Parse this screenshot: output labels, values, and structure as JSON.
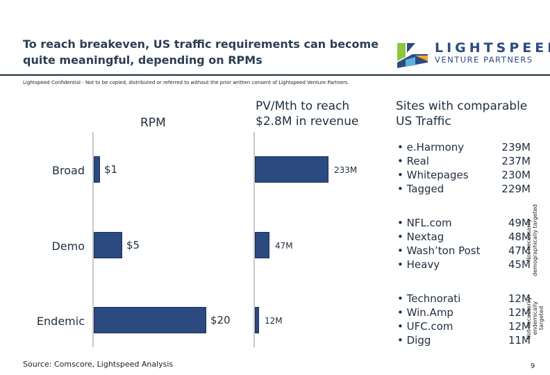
{
  "title": "To reach breakeven, US traffic requirements can become quite meaningful, depending on RPMs",
  "confidential": "Lightspeed Confidential - Not to be copied, distributed or referred to without the prior written consent of Lightspeed Venture Partners",
  "logo": {
    "line1": "LIGHTSPEED",
    "line2": "VENTURE PARTNERS"
  },
  "columns": {
    "rpm": "RPM",
    "pv": "PV/Mth to reach $2.8M in revenue",
    "sites": "Sites with comparable US Traffic"
  },
  "rows": [
    {
      "label": "Broad",
      "rpm_label": "$1",
      "pv_label": "233M"
    },
    {
      "label": "Demo",
      "rpm_label": "$5",
      "pv_label": "47M"
    },
    {
      "label": "Endemic",
      "rpm_label": "$20",
      "pv_label": "12M"
    }
  ],
  "chart_data": [
    {
      "type": "bar",
      "categories": [
        "Broad",
        "Demo",
        "Endemic"
      ],
      "values": [
        1,
        5,
        20
      ],
      "title": "RPM",
      "unit": "$"
    },
    {
      "type": "bar",
      "categories": [
        "Broad",
        "Demo",
        "Endemic"
      ],
      "values": [
        233,
        47,
        12
      ],
      "title": "PV/Mth to reach $2.8M in revenue",
      "unit": "M"
    }
  ],
  "site_groups": [
    {
      "sites": [
        "• e.Harmony",
        "• Real",
        "• Whitepages",
        "• Tagged"
      ],
      "values": [
        "239M",
        "237M",
        "230M",
        "229M"
      ],
      "note": ""
    },
    {
      "sites": [
        "• NFL.com",
        "• Nextag",
        "• Wash’ton Post",
        "• Heavy"
      ],
      "values": [
        "49M",
        "48M",
        "47M",
        "45M"
      ],
      "note": "Not necessarily demographically targeted"
    },
    {
      "sites": [
        "• Technorati",
        "• Win.Amp",
        "• UFC.com",
        "• Digg"
      ],
      "values": [
        "12M",
        "12M",
        "12M",
        "11M"
      ],
      "note": "Not necessarily endemically targeted"
    }
  ],
  "source": "Source: Comscore, Lightspeed Analysis",
  "page_number": "9",
  "colors": {
    "bar": "#2b4a80",
    "title": "#2c3e55",
    "logo_green": "#8cc63f",
    "logo_orange": "#f7a823",
    "logo_blue": "#2b4a80"
  }
}
